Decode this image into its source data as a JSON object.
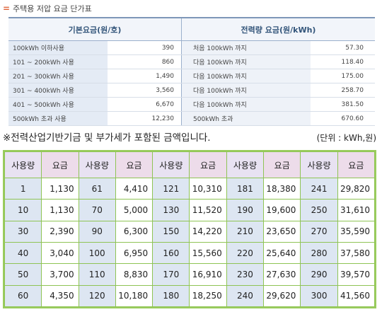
{
  "section": {
    "bullet": "=",
    "title": "주택용 저압 요금 단가표"
  },
  "rate_table": {
    "header_basic": "기본요금(원/호)",
    "header_energy": "전력량 요금(원/kWh)",
    "rows": [
      {
        "range": "100kWh 이하사용",
        "basic": "390",
        "step": "처음 100kWh 까지",
        "rate": "57.30"
      },
      {
        "range": "101 ~ 200kWh 사용",
        "basic": "860",
        "step": "다음 100kWh 까지",
        "rate": "118.40"
      },
      {
        "range": "201 ~ 300kWh 사용",
        "basic": "1,490",
        "step": "다음 100kWh 까지",
        "rate": "175.00"
      },
      {
        "range": "301 ~ 400kWh 사용",
        "basic": "3,560",
        "step": "다음 100kWh 까지",
        "rate": "258.70"
      },
      {
        "range": "401 ~ 500kWh 사용",
        "basic": "6,670",
        "step": "다음 100kWh 까지",
        "rate": "381.50"
      },
      {
        "range": "500kWh 초과 사용",
        "basic": "12,230",
        "step": "500kWh 초과",
        "rate": "670.60"
      }
    ]
  },
  "note": {
    "text": "※전력산업기반기금 및 부가세가 포함된 금액입니다.",
    "unit": "(단위 : kWh,원)"
  },
  "usage_table": {
    "header_usage": "사용량",
    "header_fee": "요금",
    "rows": [
      [
        [
          "1",
          "1,130"
        ],
        [
          "61",
          "4,410"
        ],
        [
          "121",
          "10,310"
        ],
        [
          "181",
          "18,380"
        ],
        [
          "241",
          "29,820"
        ]
      ],
      [
        [
          "10",
          "1,130"
        ],
        [
          "70",
          "5,000"
        ],
        [
          "130",
          "11,520"
        ],
        [
          "190",
          "19,600"
        ],
        [
          "250",
          "31,610"
        ]
      ],
      [
        [
          "30",
          "2,390"
        ],
        [
          "90",
          "6,300"
        ],
        [
          "150",
          "14,220"
        ],
        [
          "210",
          "23,650"
        ],
        [
          "270",
          "35,590"
        ]
      ],
      [
        [
          "40",
          "3,040"
        ],
        [
          "100",
          "6,950"
        ],
        [
          "160",
          "15,560"
        ],
        [
          "220",
          "25,640"
        ],
        [
          "280",
          "37,580"
        ]
      ],
      [
        [
          "50",
          "3,700"
        ],
        [
          "110",
          "8,830"
        ],
        [
          "170",
          "16,910"
        ],
        [
          "230",
          "27,630"
        ],
        [
          "290",
          "39,570"
        ]
      ],
      [
        [
          "60",
          "4,350"
        ],
        [
          "120",
          "10,180"
        ],
        [
          "180",
          "18,250"
        ],
        [
          "240",
          "29,620"
        ],
        [
          "300",
          "41,560"
        ]
      ]
    ]
  }
}
